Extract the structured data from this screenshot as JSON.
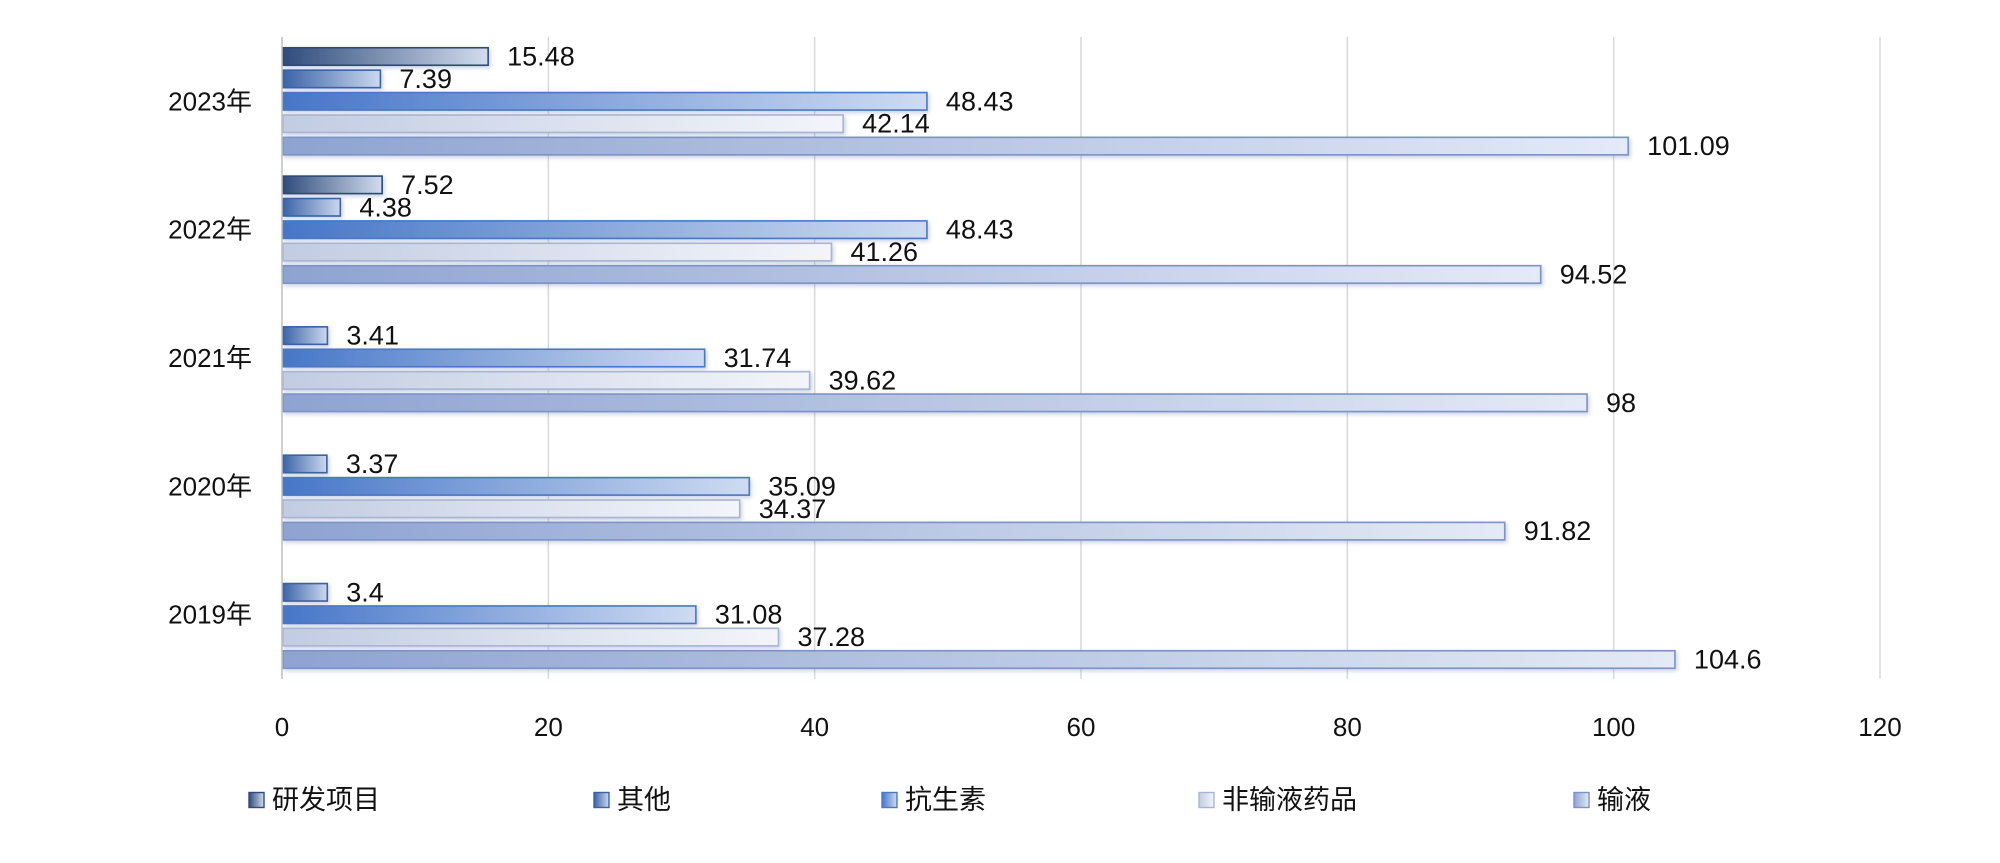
{
  "chart_data": {
    "type": "bar",
    "orientation": "horizontal",
    "categories": [
      "2023年",
      "2022年",
      "2021年",
      "2020年",
      "2019年"
    ],
    "series": [
      {
        "name": "研发项目",
        "values": [
          15.48,
          7.52,
          null,
          null,
          null
        ],
        "gradient": [
          "#2f4c7c",
          "#d2dcee"
        ],
        "border": "#2e4a78"
      },
      {
        "name": "其他",
        "values": [
          7.39,
          4.38,
          3.41,
          3.37,
          3.4
        ],
        "gradient": [
          "#3b63a8",
          "#ccd8ee"
        ],
        "border": "#3a62a4"
      },
      {
        "name": "抗生素",
        "values": [
          48.43,
          48.43,
          31.74,
          35.09,
          31.08
        ],
        "gradient": [
          "#4676c8",
          "#cedbf2"
        ],
        "border": "#4b77c3"
      },
      {
        "name": "非输液药品",
        "values": [
          42.14,
          41.26,
          39.62,
          34.37,
          37.28
        ],
        "gradient": [
          "#c2cce2",
          "#f3f5fa"
        ],
        "border": "#a8b5d3"
      },
      {
        "name": "输液",
        "values": [
          101.09,
          94.52,
          98,
          91.82,
          104.6
        ],
        "gradient": [
          "#8ea3d1",
          "#e4eaf6"
        ],
        "border": "#7b93c8"
      }
    ],
    "xlim": [
      0,
      120
    ],
    "xticks": [
      0,
      20,
      40,
      60,
      80,
      100,
      120
    ],
    "grid": "vertical",
    "data_labels": true,
    "legend": "bottom"
  }
}
